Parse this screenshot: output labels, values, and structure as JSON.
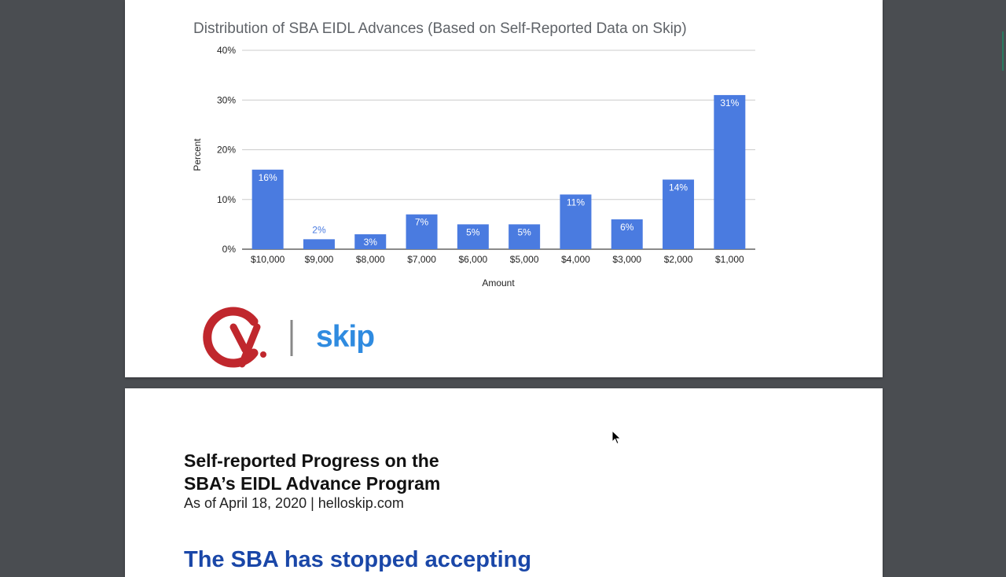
{
  "chart_data": {
    "type": "bar",
    "title": "Distribution of SBA EIDL Advances (Based on Self-Reported Data on Skip)",
    "xlabel": "Amount",
    "ylabel": "Percent",
    "categories": [
      "$10,000",
      "$9,000",
      "$8,000",
      "$7,000",
      "$6,000",
      "$5,000",
      "$4,000",
      "$3,000",
      "$2,000",
      "$1,000"
    ],
    "values": [
      16,
      2,
      3,
      7,
      5,
      5,
      11,
      6,
      14,
      31
    ],
    "data_labels": [
      "16%",
      "2%",
      "3%",
      "7%",
      "5%",
      "5%",
      "11%",
      "6%",
      "14%",
      "31%"
    ],
    "ylim": [
      0,
      40
    ],
    "yticks": [
      0,
      10,
      20,
      30,
      40
    ],
    "ytick_labels": [
      "0%",
      "10%",
      "20%",
      "30%",
      "40%"
    ],
    "grid": true,
    "bar_color": "#4a7be0"
  },
  "logos": {
    "left_mark": "Cy.",
    "right_wordmark": "skip",
    "cy_color": "#c0272d",
    "skip_color": "#2f8be0"
  },
  "page2": {
    "heading_line1": "Self-reported Progress on the",
    "heading_line2": "SBA’s EIDL Advance Program",
    "subline": "As of April 18, 2020 | helloskip.com",
    "big_heading": "The SBA has stopped accepting"
  }
}
